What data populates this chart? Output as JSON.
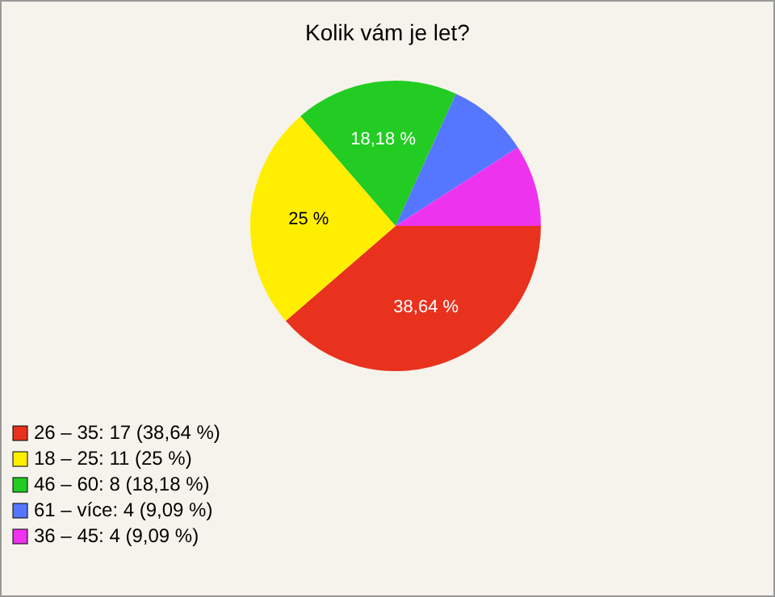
{
  "chart_data": {
    "type": "pie",
    "title": "Kolik vám je let?",
    "categories": [
      "26 – 35: 17 (38,64 %)",
      "18 – 25: 11 (25 %)",
      "46 – 60: 8 (18,18 %)",
      "61 – více: 4 (9,09 %)",
      "36 – 45: 4 (9,09 %)"
    ],
    "values": [
      38.64,
      25,
      18.18,
      9.09,
      9.09
    ],
    "colors": [
      "#e8321e",
      "#ffee00",
      "#22cc22",
      "#5577ff",
      "#ee33ee"
    ],
    "value_labels": [
      "38,64 %",
      "25 %",
      "18,18 %",
      null,
      null
    ],
    "legend": "bottom"
  }
}
